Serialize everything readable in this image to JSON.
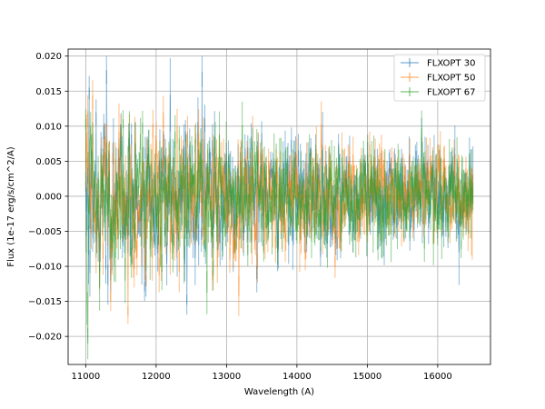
{
  "chart_data": {
    "type": "line",
    "title": "",
    "xlabel": "Wavelength (A)",
    "ylabel": "Flux (1e-17 erg/s/cm^2/A)",
    "xlim": [
      10750,
      16750
    ],
    "ylim": [
      -0.024,
      0.021
    ],
    "x_ticks": [
      11000,
      12000,
      13000,
      14000,
      15000,
      16000
    ],
    "x_tick_labels": [
      "11000",
      "12000",
      "13000",
      "14000",
      "15000",
      "16000"
    ],
    "y_ticks": [
      -0.02,
      -0.015,
      -0.01,
      -0.005,
      0.0,
      0.005,
      0.01,
      0.015,
      0.02
    ],
    "y_tick_labels": [
      "−0.020",
      "−0.015",
      "−0.010",
      "−0.005",
      "0.000",
      "0.005",
      "0.010",
      "0.015",
      "0.020"
    ],
    "grid": true,
    "legend_position": "top-right",
    "series": [
      {
        "name": "FLXOPT 30",
        "color": "#1f77b4",
        "x_start": 11000,
        "x_end": 16500,
        "points": [
          [
            11000,
            0.002
          ],
          [
            11050,
            0.0155
          ],
          [
            11100,
            -0.006
          ],
          [
            11150,
            0.012
          ],
          [
            11200,
            -0.008
          ],
          [
            11300,
            0.018
          ],
          [
            11350,
            -0.012
          ],
          [
            11500,
            0.01
          ],
          [
            11600,
            -0.006
          ],
          [
            11700,
            0.008
          ],
          [
            11800,
            -0.01
          ],
          [
            11900,
            0.006
          ],
          [
            12000,
            -0.004
          ],
          [
            12100,
            0.006
          ],
          [
            12200,
            0.0145
          ],
          [
            12300,
            -0.008
          ],
          [
            12400,
            0.007
          ],
          [
            12500,
            -0.005
          ],
          [
            12650,
            0.0178
          ],
          [
            12700,
            -0.008
          ],
          [
            12800,
            0.008
          ],
          [
            12900,
            -0.004
          ],
          [
            13000,
            0.006
          ],
          [
            13100,
            -0.006
          ],
          [
            13300,
            0.007
          ],
          [
            13400,
            -0.003
          ],
          [
            13500,
            0.009
          ],
          [
            13600,
            -0.004
          ],
          [
            13800,
            0.005
          ],
          [
            14000,
            -0.003
          ],
          [
            14200,
            0.007
          ],
          [
            14400,
            -0.005
          ],
          [
            14600,
            0.004
          ],
          [
            14800,
            -0.006
          ],
          [
            15000,
            0.006
          ],
          [
            15200,
            -0.007
          ],
          [
            15400,
            0.004
          ],
          [
            15600,
            -0.006
          ],
          [
            15800,
            0.005
          ],
          [
            16000,
            -0.004
          ],
          [
            16200,
            0.005
          ],
          [
            16300,
            -0.008
          ],
          [
            16450,
            0.006
          ],
          [
            16500,
            0.003
          ]
        ]
      },
      {
        "name": "FLXOPT 50",
        "color": "#ff7f0e",
        "x_start": 11000,
        "x_end": 16500,
        "points": [
          [
            11000,
            0.004
          ],
          [
            11100,
            0.0145
          ],
          [
            11200,
            -0.01
          ],
          [
            11300,
            0.008
          ],
          [
            11350,
            -0.015
          ],
          [
            11500,
            0.01
          ],
          [
            11600,
            -0.017
          ],
          [
            11700,
            0.009
          ],
          [
            11800,
            -0.006
          ],
          [
            12000,
            0.008
          ],
          [
            12100,
            0.012
          ],
          [
            12200,
            -0.008
          ],
          [
            12300,
            0.01
          ],
          [
            12400,
            -0.005
          ],
          [
            12600,
            0.009
          ],
          [
            12800,
            -0.012
          ],
          [
            12900,
            0.006
          ],
          [
            13000,
            -0.004
          ],
          [
            13200,
            0.005
          ],
          [
            13400,
            -0.006
          ],
          [
            13600,
            0.005
          ],
          [
            13800,
            -0.003
          ],
          [
            14000,
            0.004
          ],
          [
            14200,
            -0.004
          ],
          [
            14400,
            0.005
          ],
          [
            14600,
            -0.004
          ],
          [
            14800,
            0.006
          ],
          [
            15000,
            -0.005
          ],
          [
            15200,
            0.007
          ],
          [
            15400,
            -0.004
          ],
          [
            15600,
            0.006
          ],
          [
            15800,
            -0.004
          ],
          [
            16000,
            0.005
          ],
          [
            16200,
            -0.003
          ],
          [
            16400,
            0.004
          ],
          [
            16500,
            0.001
          ]
        ]
      },
      {
        "name": "FLXOPT 67",
        "color": "#2ca02c",
        "x_start": 11000,
        "x_end": 16500,
        "points": [
          [
            11000,
            0.011
          ],
          [
            11020,
            -0.016
          ],
          [
            11030,
            -0.021
          ],
          [
            11100,
            0.009
          ],
          [
            11200,
            -0.013
          ],
          [
            11300,
            0.006
          ],
          [
            11400,
            -0.01
          ],
          [
            11500,
            0.008
          ],
          [
            11700,
            -0.006
          ],
          [
            11900,
            0.007
          ],
          [
            12000,
            -0.005
          ],
          [
            12200,
            0.006
          ],
          [
            12400,
            -0.009
          ],
          [
            12600,
            0.005
          ],
          [
            12800,
            -0.004
          ],
          [
            13000,
            0.005
          ],
          [
            13200,
            -0.006
          ],
          [
            13400,
            0.006
          ],
          [
            13600,
            -0.004
          ],
          [
            13800,
            0.004
          ],
          [
            14000,
            -0.005
          ],
          [
            14200,
            0.005
          ],
          [
            14400,
            -0.004
          ],
          [
            14600,
            0.004
          ],
          [
            14800,
            -0.005
          ],
          [
            15000,
            0.006
          ],
          [
            15200,
            -0.003
          ],
          [
            15400,
            0.004
          ],
          [
            15600,
            -0.005
          ],
          [
            15800,
            0.004
          ],
          [
            16000,
            -0.004
          ],
          [
            16200,
            0.004
          ],
          [
            16400,
            -0.003
          ],
          [
            16500,
            0.0
          ]
        ]
      }
    ]
  }
}
